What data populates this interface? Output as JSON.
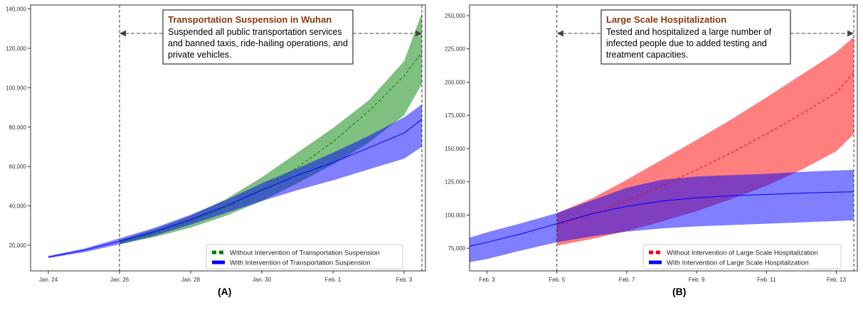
{
  "chart_data": [
    {
      "type": "area",
      "caption": "(A)",
      "annotation": {
        "title": "Transportation Suspension in Wuhan",
        "lines": [
          "Suspended all public transportation services",
          "and banned taxis, ride-hailing operations, and",
          "private vehicles."
        ]
      },
      "x_ticks": [
        "Jan. 24",
        "Jan. 26",
        "Jan. 28",
        "Jan. 30",
        "Feb. 1",
        "Feb. 3"
      ],
      "x_tick_days": [
        0,
        2,
        4,
        6,
        8,
        10
      ],
      "xlim_days": [
        -0.5,
        10.6
      ],
      "y_ticks": [
        "20,000",
        "40,000",
        "60,000",
        "80,000",
        "100,000",
        "120,000",
        "140,000"
      ],
      "y_tick_values": [
        20000,
        40000,
        60000,
        80000,
        100000,
        120000,
        140000
      ],
      "ylim": [
        7000,
        142000
      ],
      "vlines_days": [
        2,
        10.5
      ],
      "series": [
        {
          "name": "Without Intervention of Transportation Suspension",
          "color": "#008000",
          "line_style": "dashed",
          "x_days": [
            2,
            3,
            4,
            5,
            6,
            7,
            8,
            9,
            10,
            10.5
          ],
          "mean": [
            21500,
            26200,
            32000,
            39500,
            48500,
            59500,
            72500,
            88000,
            106000,
            118000
          ],
          "lower": [
            20500,
            24200,
            29000,
            35000,
            42500,
            51500,
            61000,
            72000,
            86000,
            102000
          ],
          "upper": [
            22700,
            28200,
            35000,
            43500,
            54500,
            67000,
            79500,
            93500,
            113500,
            138000
          ]
        },
        {
          "name": "With Intervention of Transportation Suspension",
          "color": "#0000ff",
          "line_style": "solid",
          "x_days": [
            0,
            1,
            2,
            3,
            4,
            5,
            6,
            7,
            8,
            9,
            10,
            10.5
          ],
          "mean": [
            14000,
            17500,
            22000,
            27000,
            33000,
            40000,
            48000,
            55500,
            62000,
            69500,
            77000,
            84000
          ],
          "lower": [
            13500,
            16500,
            20500,
            25000,
            30500,
            36500,
            42500,
            48000,
            53000,
            58500,
            64000,
            70000
          ],
          "upper": [
            14600,
            18300,
            23500,
            29000,
            35500,
            43000,
            51500,
            59000,
            67000,
            75500,
            85000,
            91500
          ]
        }
      ]
    },
    {
      "type": "area",
      "caption": "(B)",
      "annotation": {
        "title": "Large Scale Hospitalization",
        "lines": [
          "Tested and hospitalized a large number of",
          "infected people due to added testing and",
          "treatment capacities."
        ]
      },
      "x_ticks": [
        "Feb. 3",
        "Feb. 5",
        "Feb. 7",
        "Feb. 9",
        "Feb. 11",
        "Feb. 13"
      ],
      "x_tick_days": [
        0,
        2,
        4,
        6,
        8,
        10
      ],
      "xlim_days": [
        -0.5,
        10.6
      ],
      "y_ticks": [
        "75,000",
        "100,000",
        "125,000",
        "150,000",
        "175,000",
        "200,000",
        "225,000",
        "250,000"
      ],
      "y_tick_values": [
        75000,
        100000,
        125000,
        150000,
        175000,
        200000,
        225000,
        250000
      ],
      "ylim": [
        58000,
        258000
      ],
      "vlines_days": [
        2,
        10.5
      ],
      "series": [
        {
          "name": "Without Intervention of Large Scale Hospitalization",
          "color": "#ff0000",
          "line_style": "dashed",
          "x_days": [
            2,
            3,
            4,
            5,
            6,
            7,
            8,
            9,
            10,
            10.5
          ],
          "mean": [
            92000,
            101000,
            111000,
            122000,
            134000,
            147000,
            161000,
            176000,
            192000,
            207000
          ],
          "lower": [
            77000,
            82000,
            88000,
            95000,
            103000,
            112000,
            122000,
            134000,
            148000,
            161000
          ],
          "upper": [
            101500,
            112500,
            126500,
            141500,
            156500,
            172000,
            188500,
            205500,
            222500,
            234000
          ]
        },
        {
          "name": "With Intervention of Large Scale Hospitalization",
          "color": "#0000ff",
          "line_style": "solid",
          "x_days": [
            -0.5,
            0,
            1,
            2,
            3,
            4,
            5,
            6,
            7,
            8,
            9,
            10,
            10.5
          ],
          "mean": [
            76500,
            79500,
            86000,
            93500,
            101000,
            106500,
            110500,
            113000,
            114500,
            115500,
            116500,
            117200,
            117500
          ],
          "lower": [
            64500,
            67000,
            73500,
            79500,
            84000,
            87500,
            90000,
            91500,
            92500,
            93500,
            94500,
            95500,
            96000
          ],
          "upper": [
            83000,
            87000,
            94000,
            101500,
            111000,
            120500,
            126500,
            129000,
            130000,
            131000,
            132500,
            133500,
            134000
          ]
        }
      ]
    }
  ]
}
